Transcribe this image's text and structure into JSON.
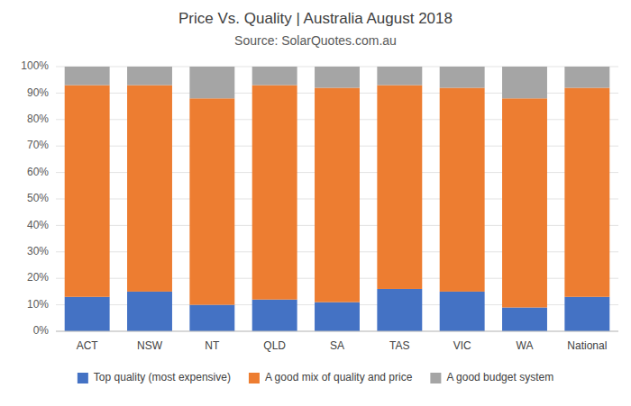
{
  "chart_data": {
    "type": "bar",
    "stacked": true,
    "title": "Price Vs. Quality | Australia August 2018",
    "subtitle": "Source: SolarQuotes.com.au",
    "categories": [
      "ACT",
      "NSW",
      "NT",
      "QLD",
      "SA",
      "TAS",
      "VIC",
      "WA",
      "National"
    ],
    "series": [
      {
        "name": "Top quality (most expensive)",
        "color": "#4472C4",
        "values": [
          13,
          15,
          10,
          12,
          11,
          16,
          15,
          9,
          13
        ]
      },
      {
        "name": "A good mix of quality and price",
        "color": "#ED7D31",
        "values": [
          80,
          78,
          78,
          81,
          81,
          77,
          77,
          79,
          79
        ]
      },
      {
        "name": "A good budget system",
        "color": "#A5A5A5",
        "values": [
          7,
          7,
          12,
          7,
          8,
          7,
          8,
          12,
          8
        ]
      }
    ],
    "ylim": [
      0,
      100
    ],
    "yticks": [
      {
        "value": 0,
        "label": "0%"
      },
      {
        "value": 10,
        "label": "10%"
      },
      {
        "value": 20,
        "label": "20%"
      },
      {
        "value": 30,
        "label": "30%"
      },
      {
        "value": 40,
        "label": "40%"
      },
      {
        "value": 50,
        "label": "50%"
      },
      {
        "value": 60,
        "label": "60%"
      },
      {
        "value": 70,
        "label": "70%"
      },
      {
        "value": 80,
        "label": "80%"
      },
      {
        "value": 90,
        "label": "90%"
      },
      {
        "value": 100,
        "label": "100%"
      }
    ],
    "grid": true,
    "legend": "bottom"
  }
}
